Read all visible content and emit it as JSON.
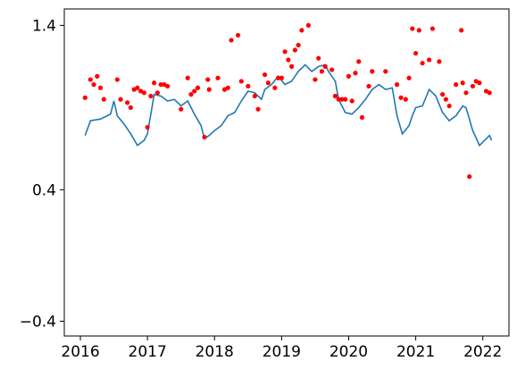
{
  "chart_data": [
    {
      "type": "line",
      "color": "#1f77b4",
      "x": [
        2016.07,
        2016.15,
        2016.3,
        2016.45,
        2016.5,
        2016.55,
        2016.65,
        2016.75,
        2016.85,
        2016.95,
        2017.0,
        2017.05,
        2017.1,
        2017.2,
        2017.3,
        2017.4,
        2017.5,
        2017.6,
        2017.7,
        2017.8,
        2017.85,
        2017.92,
        2018.0,
        2018.1,
        2018.2,
        2018.3,
        2018.4,
        2018.5,
        2018.6,
        2018.7,
        2018.75,
        2018.85,
        2018.95,
        2019.05,
        2019.15,
        2019.25,
        2019.35,
        2019.45,
        2019.55,
        2019.65,
        2019.7,
        2019.8,
        2019.85,
        2019.95,
        2020.05,
        2020.15,
        2020.25,
        2020.35,
        2020.45,
        2020.55,
        2020.65,
        2020.72,
        2020.8,
        2020.9,
        2020.95,
        2021.0,
        2021.1,
        2021.2,
        2021.3,
        2021.4,
        2021.5,
        2021.6,
        2021.7,
        2021.75,
        2021.85,
        2021.95,
        2022.05,
        2022.1,
        2022.13
      ],
      "values": [
        0.73,
        0.82,
        0.83,
        0.86,
        0.94,
        0.85,
        0.8,
        0.74,
        0.67,
        0.7,
        0.74,
        0.86,
        0.98,
        0.97,
        0.94,
        0.95,
        0.91,
        0.94,
        0.86,
        0.79,
        0.71,
        0.73,
        0.76,
        0.79,
        0.85,
        0.87,
        0.94,
        1.0,
        0.99,
        0.95,
        1.01,
        1.04,
        1.09,
        1.04,
        1.06,
        1.12,
        1.16,
        1.12,
        1.15,
        1.16,
        1.12,
        1.06,
        0.95,
        0.87,
        0.86,
        0.9,
        0.95,
        1.01,
        1.04,
        1.01,
        1.02,
        0.85,
        0.74,
        0.79,
        0.85,
        0.9,
        0.91,
        1.01,
        0.97,
        0.87,
        0.82,
        0.85,
        0.91,
        0.9,
        0.76,
        0.67,
        0.71,
        0.73,
        0.7
      ],
      "xlim": [
        2015.76,
        2022.39
      ],
      "ylim": [
        -0.49,
        1.5
      ],
      "xticks": [
        2016,
        2017,
        2018,
        2019,
        2020,
        2021,
        2022
      ],
      "yticks": [
        {
          "value": -0.4,
          "label": "−0.4"
        },
        0.4,
        1.4
      ]
    },
    {
      "type": "scatter",
      "color": "#ff0000",
      "x": [
        2016.07,
        2016.15,
        2016.2,
        2016.25,
        2016.3,
        2016.35,
        2016.55,
        2016.6,
        2016.7,
        2016.75,
        2016.8,
        2016.85,
        2016.9,
        2016.95,
        2017.0,
        2017.05,
        2017.1,
        2017.15,
        2017.2,
        2017.25,
        2017.3,
        2017.5,
        2017.6,
        2017.65,
        2017.7,
        2017.75,
        2017.85,
        2017.9,
        2017.92,
        2018.05,
        2018.15,
        2018.2,
        2018.25,
        2018.35,
        2018.4,
        2018.5,
        2018.6,
        2018.65,
        2018.75,
        2018.8,
        2018.9,
        2018.95,
        2019.0,
        2019.05,
        2019.1,
        2019.15,
        2019.2,
        2019.25,
        2019.3,
        2019.4,
        2019.5,
        2019.55,
        2019.6,
        2019.65,
        2019.75,
        2019.8,
        2019.85,
        2019.9,
        2019.95,
        2020.0,
        2020.05,
        2020.1,
        2020.15,
        2020.2,
        2020.3,
        2020.35,
        2020.55,
        2020.72,
        2020.78,
        2020.85,
        2020.9,
        2020.95,
        2021.0,
        2021.05,
        2021.1,
        2021.2,
        2021.25,
        2021.35,
        2021.4,
        2021.45,
        2021.5,
        2021.6,
        2021.68,
        2021.7,
        2021.75,
        2021.8,
        2021.85,
        2021.9,
        2021.95,
        2022.05,
        2022.1
      ],
      "values": [
        0.96,
        1.07,
        1.04,
        1.09,
        1.02,
        0.95,
        1.07,
        0.95,
        0.93,
        0.9,
        1.01,
        1.02,
        1.0,
        0.99,
        0.78,
        0.97,
        1.05,
        0.99,
        1.04,
        1.04,
        1.03,
        0.89,
        1.08,
        0.98,
        1.0,
        1.02,
        0.72,
        1.07,
        1.01,
        1.08,
        1.01,
        1.02,
        1.31,
        1.34,
        1.06,
        1.03,
        0.97,
        0.89,
        1.1,
        1.05,
        1.02,
        1.08,
        1.08,
        1.24,
        1.19,
        1.15,
        1.25,
        1.28,
        1.37,
        1.4,
        1.07,
        1.2,
        1.12,
        1.15,
        1.13,
        0.97,
        0.95,
        0.95,
        0.95,
        1.09,
        0.94,
        1.11,
        1.18,
        0.84,
        1.03,
        1.12,
        1.12,
        1.04,
        0.96,
        0.95,
        1.08,
        1.38,
        1.23,
        1.37,
        1.17,
        1.19,
        1.38,
        1.18,
        0.98,
        0.95,
        0.91,
        1.04,
        1.37,
        1.05,
        0.99,
        0.48,
        1.03,
        1.06,
        1.05,
        1.0,
        0.99
      ]
    }
  ]
}
